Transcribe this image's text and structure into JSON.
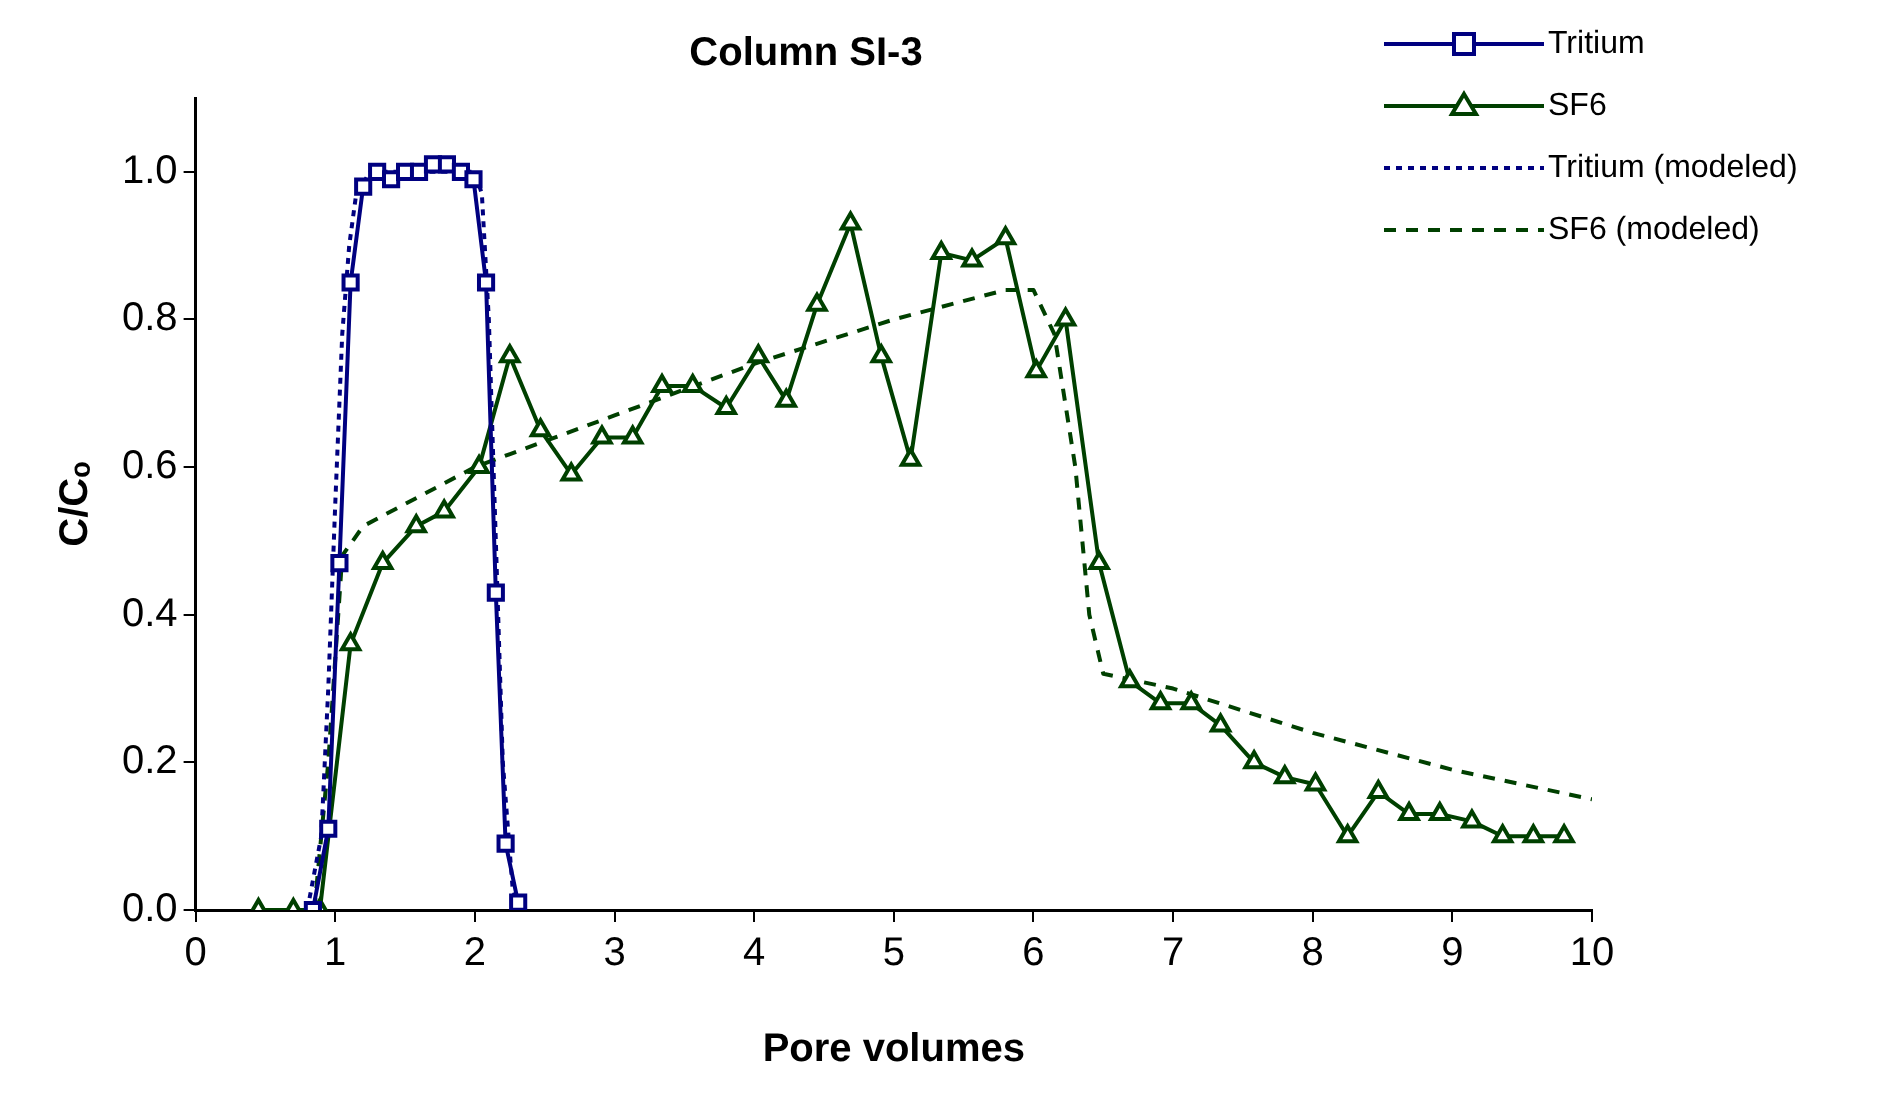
{
  "chart_data": {
    "type": "line",
    "title": "Column SI-3",
    "xlabel": "Pore volumes",
    "ylabel": "C/Cₒ",
    "xlim": [
      0,
      10
    ],
    "xticks": [
      0,
      1,
      2,
      3,
      4,
      5,
      6,
      7,
      8,
      9,
      10
    ],
    "ylim": [
      0,
      1.1
    ],
    "yticks": [
      {
        "value": 0,
        "label": "0.0"
      },
      {
        "value": 0.2,
        "label": "0.2"
      },
      {
        "value": 0.4,
        "label": "0.4"
      },
      {
        "value": 0.6,
        "label": "0.6"
      },
      {
        "value": 0.8,
        "label": "0.8"
      },
      {
        "value": 1,
        "label": "1.0"
      }
    ],
    "grid": false,
    "legend": "top right",
    "series": [
      {
        "name": "Tritium",
        "color": "#000080",
        "marker": "square",
        "line_style": "solid",
        "x": [
          0.84,
          0.95,
          1.03,
          1.11,
          1.2,
          1.3,
          1.4,
          1.5,
          1.6,
          1.7,
          1.8,
          1.9,
          1.99,
          2.08,
          2.15,
          2.22,
          2.31
        ],
        "values": [
          0,
          0.11,
          0.47,
          0.85,
          0.98,
          1.0,
          0.99,
          1.0,
          1.0,
          1.01,
          1.01,
          1.0,
          0.99,
          0.85,
          0.43,
          0.09,
          0.01
        ]
      },
      {
        "name": "SF6",
        "color": "#004000",
        "marker": "triangle",
        "line_style": "solid",
        "x": [
          0.45,
          0.7,
          0.89,
          1.11,
          1.34,
          1.58,
          1.78,
          2.03,
          2.25,
          2.47,
          2.69,
          2.91,
          3.13,
          3.34,
          3.56,
          3.8,
          4.03,
          4.23,
          4.45,
          4.69,
          4.91,
          5.12,
          5.34,
          5.56,
          5.8,
          6.02,
          6.23,
          6.47,
          6.69,
          6.91,
          7.13,
          7.34,
          7.58,
          7.8,
          8.02,
          8.25,
          8.47,
          8.69,
          8.91,
          9.14,
          9.36,
          9.58,
          9.8
        ],
        "values": [
          0,
          0,
          0,
          0.36,
          0.47,
          0.52,
          0.54,
          0.6,
          0.75,
          0.65,
          0.59,
          0.64,
          0.64,
          0.71,
          0.71,
          0.68,
          0.75,
          0.69,
          0.82,
          0.93,
          0.75,
          0.61,
          0.89,
          0.88,
          0.91,
          0.73,
          0.8,
          0.47,
          0.31,
          0.28,
          0.28,
          0.25,
          0.2,
          0.18,
          0.17,
          0.1,
          0.16,
          0.13,
          0.13,
          0.12,
          0.1,
          0.1,
          0.1
        ]
      },
      {
        "name": "Tritium (modeled)",
        "color": "#000080",
        "marker": "none",
        "line_style": "dotted",
        "x": [
          0.8,
          0.9,
          0.95,
          1.0,
          1.05,
          1.1,
          1.15,
          1.25,
          2.0,
          2.05,
          2.1,
          2.15,
          2.2,
          2.27,
          2.32
        ],
        "values": [
          0,
          0.1,
          0.3,
          0.55,
          0.78,
          0.9,
          0.97,
          1.0,
          1.0,
          0.97,
          0.8,
          0.5,
          0.2,
          0.03,
          0
        ]
      },
      {
        "name": "SF6 (modeled)",
        "color": "#004000",
        "marker": "none",
        "line_style": "dashed",
        "x": [
          0.85,
          0.95,
          1.05,
          1.2,
          2,
          3,
          4,
          5,
          5.8,
          6.0,
          6.15,
          6.3,
          6.4,
          6.5,
          7,
          8,
          9,
          10
        ],
        "values": [
          0,
          0.2,
          0.48,
          0.52,
          0.6,
          0.67,
          0.74,
          0.8,
          0.84,
          0.84,
          0.78,
          0.6,
          0.4,
          0.32,
          0.3,
          0.24,
          0.19,
          0.15
        ]
      }
    ]
  }
}
